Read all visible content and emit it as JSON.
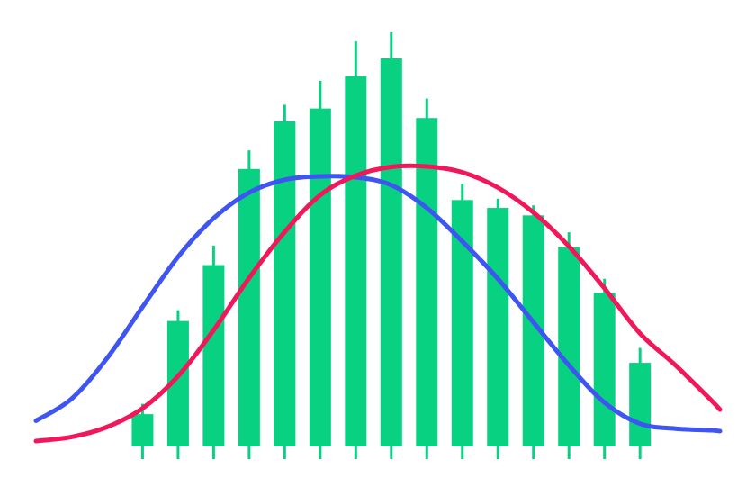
{
  "chart_data": {
    "type": "bar",
    "title": "",
    "xlabel": "",
    "ylabel": "",
    "grid": false,
    "legend": "none",
    "ylim": [
      0,
      100
    ],
    "xlim": [
      0,
      20
    ],
    "candles": [
      {
        "x": 3,
        "low": 0,
        "high": 10.3,
        "open": 0,
        "close": 7.8
      },
      {
        "x": 4,
        "low": 0,
        "high": 32.9,
        "open": 0,
        "close": 30.3
      },
      {
        "x": 5,
        "low": 0,
        "high": 48.5,
        "open": 0,
        "close": 43.8
      },
      {
        "x": 6,
        "low": 0,
        "high": 71.5,
        "open": 0,
        "close": 67.0
      },
      {
        "x": 7,
        "low": 0,
        "high": 82.5,
        "open": 0,
        "close": 78.5
      },
      {
        "x": 8,
        "low": 0,
        "high": 88.3,
        "open": 0,
        "close": 81.6
      },
      {
        "x": 9,
        "low": 0,
        "high": 97.8,
        "open": 0,
        "close": 89.4
      },
      {
        "x": 10,
        "low": 0,
        "high": 100.0,
        "open": 0,
        "close": 93.7
      },
      {
        "x": 11,
        "low": 0,
        "high": 84.0,
        "open": 0,
        "close": 79.3
      },
      {
        "x": 12,
        "low": 0,
        "high": 63.5,
        "open": 0,
        "close": 59.5
      },
      {
        "x": 13,
        "low": 0,
        "high": 59.8,
        "open": 0,
        "close": 57.6
      },
      {
        "x": 14,
        "low": 0,
        "high": 58.2,
        "open": 0,
        "close": 55.8
      },
      {
        "x": 15,
        "low": 0,
        "high": 51.7,
        "open": 0,
        "close": 48.1
      },
      {
        "x": 16,
        "low": 0,
        "high": 40.5,
        "open": 0,
        "close": 37.1
      },
      {
        "x": 17,
        "low": 0,
        "high": 23.8,
        "open": 0,
        "close": 20.2
      }
    ],
    "curves": [
      {
        "color": "#3e55f2",
        "values": [
          [
            0,
            6.2
          ],
          [
            1,
            11.5
          ],
          [
            2,
            21.3
          ],
          [
            3,
            33.7
          ],
          [
            4,
            45.8
          ],
          [
            5,
            55.1
          ],
          [
            6,
            61.3
          ],
          [
            7,
            64.4
          ],
          [
            8,
            65.2
          ],
          [
            9,
            65.0
          ],
          [
            10,
            63.1
          ],
          [
            11,
            57.6
          ],
          [
            12,
            49.5
          ],
          [
            13,
            40.5
          ],
          [
            14,
            30.0
          ],
          [
            15,
            19.6
          ],
          [
            16,
            10.6
          ],
          [
            17,
            5.5
          ],
          [
            18,
            4.3
          ],
          [
            19,
            3.9
          ],
          [
            19.25,
            3.7
          ]
        ]
      },
      {
        "color": "#f0175a",
        "values": [
          [
            0,
            1.3
          ],
          [
            1,
            2.3
          ],
          [
            2,
            4.7
          ],
          [
            3,
            9.2
          ],
          [
            4,
            17.0
          ],
          [
            5,
            28.1
          ],
          [
            6,
            40.7
          ],
          [
            7,
            51.8
          ],
          [
            8,
            60.7
          ],
          [
            9,
            65.4
          ],
          [
            10,
            67.5
          ],
          [
            11,
            67.6
          ],
          [
            12,
            66.2
          ],
          [
            13,
            62.5
          ],
          [
            14,
            56.5
          ],
          [
            15,
            48.3
          ],
          [
            16,
            38.2
          ],
          [
            17,
            27.3
          ],
          [
            18,
            19.6
          ],
          [
            19,
            11.2
          ],
          [
            19.25,
            8.9
          ]
        ]
      }
    ],
    "bar_color": "#08d182"
  }
}
